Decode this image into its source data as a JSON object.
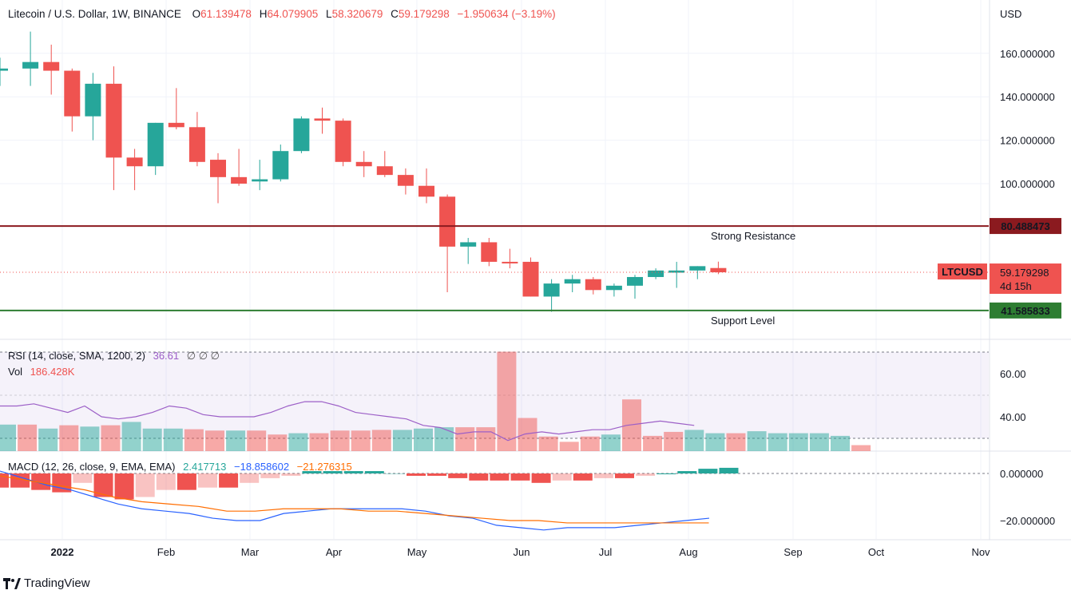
{
  "header": {
    "symbol": "Litecoin / U.S. Dollar, 1W, BINANCE",
    "o_label": "O",
    "o_value": "61.139478",
    "h_label": "H",
    "h_value": "64.079905",
    "l_label": "L",
    "l_value": "58.320679",
    "c_label": "C",
    "c_value": "59.179298",
    "change": "−1.950634 (−3.19%)"
  },
  "price_axis": {
    "currency": "USD",
    "ticks": [
      "160.000000",
      "140.000000",
      "120.000000",
      "100.000000"
    ]
  },
  "levels": {
    "resistance": {
      "value": 80.488473,
      "label": "80.488473",
      "text": "Strong Resistance",
      "color": "#8b1a1f"
    },
    "support": {
      "value": 41.585833,
      "label": "41.585833",
      "text": "Support Level",
      "color": "#2e7d32"
    },
    "last": {
      "value": 59.179298,
      "symbol": "LTCUSD",
      "label": "59.179298",
      "countdown": "4d 15h",
      "color": "#ef5350"
    }
  },
  "time_axis": [
    "2022",
    "Feb",
    "Mar",
    "Apr",
    "May",
    "Jun",
    "Jul",
    "Aug",
    "Sep",
    "Oct",
    "Nov"
  ],
  "rsi": {
    "legend": "RSI (14, close, SMA, 1200, 2)",
    "value": "36.61",
    "extras": "∅  ∅  ∅",
    "ticks": [
      "60.00",
      "40.00"
    ],
    "values": [
      45,
      45,
      46,
      44,
      42,
      45,
      40,
      39,
      40,
      42,
      45,
      44,
      41,
      40,
      40,
      40,
      42,
      45,
      47,
      47,
      45,
      42,
      41,
      40,
      39,
      36,
      35,
      32,
      33,
      33,
      29,
      32,
      33,
      32,
      33,
      34,
      34,
      36,
      37,
      38,
      37,
      36
    ]
  },
  "vol": {
    "label": "Vol",
    "value": "186.428K",
    "values": [
      40,
      40,
      34,
      39,
      37,
      39,
      44,
      34,
      34,
      33,
      31,
      31,
      31,
      25,
      27,
      27,
      31,
      31,
      32,
      32,
      34,
      36,
      36,
      36,
      150,
      50,
      22,
      14,
      22,
      25,
      78,
      23,
      29,
      32,
      27,
      27,
      30,
      27,
      27,
      27,
      23,
      9
    ]
  },
  "macd": {
    "legend": "MACD (12, 26, close, 9, EMA, EMA)",
    "hist_value": "2.417713",
    "macd_value": "−18.858602",
    "signal_value": "−21.276315",
    "ticks": [
      "0.000000",
      "−20.000000"
    ],
    "macd_line": [
      1,
      -2,
      -5,
      -7,
      -10,
      -13,
      -15,
      -16,
      -17,
      -19,
      -20,
      -20,
      -17,
      -16,
      -15,
      -15,
      -15,
      -15,
      -16,
      -18,
      -19,
      -22,
      -23,
      -24,
      -23,
      -23,
      -23,
      -22,
      -21,
      -20,
      -19
    ],
    "signal_line": [
      -1,
      -3,
      -5,
      -7,
      -10,
      -12,
      -13,
      -14,
      -16,
      -16,
      -15,
      -15,
      -15,
      -16,
      -16,
      -17,
      -18,
      -19,
      -20,
      -20,
      -21,
      -21,
      -21,
      -21,
      -21,
      -21
    ]
  },
  "candles": [
    {
      "o": 152,
      "h": 158,
      "l": 145,
      "c": 153,
      "up": true
    },
    {
      "o": 153,
      "h": 170,
      "l": 145,
      "c": 156,
      "up": true
    },
    {
      "o": 156,
      "h": 164,
      "l": 141,
      "c": 152,
      "up": false
    },
    {
      "o": 152,
      "h": 153,
      "l": 124,
      "c": 131,
      "up": false
    },
    {
      "o": 131,
      "h": 151,
      "l": 120,
      "c": 146,
      "up": true
    },
    {
      "o": 146,
      "h": 154,
      "l": 97,
      "c": 112,
      "up": false
    },
    {
      "o": 112,
      "h": 116,
      "l": 97,
      "c": 108,
      "up": false
    },
    {
      "o": 108,
      "h": 128,
      "l": 104,
      "c": 128,
      "up": true
    },
    {
      "o": 128,
      "h": 144,
      "l": 125,
      "c": 126,
      "up": false
    },
    {
      "o": 126,
      "h": 133,
      "l": 108,
      "c": 110,
      "up": false
    },
    {
      "o": 111,
      "h": 114,
      "l": 91,
      "c": 103,
      "up": false
    },
    {
      "o": 103,
      "h": 116,
      "l": 99,
      "c": 100,
      "up": false
    },
    {
      "o": 101,
      "h": 111,
      "l": 97,
      "c": 102,
      "up": true
    },
    {
      "o": 102,
      "h": 118,
      "l": 101,
      "c": 115,
      "up": true
    },
    {
      "o": 115,
      "h": 131,
      "l": 114,
      "c": 130,
      "up": true
    },
    {
      "o": 130,
      "h": 135,
      "l": 123,
      "c": 129,
      "up": false
    },
    {
      "o": 129,
      "h": 130,
      "l": 108,
      "c": 110,
      "up": false
    },
    {
      "o": 110,
      "h": 115,
      "l": 103,
      "c": 108,
      "up": false
    },
    {
      "o": 108,
      "h": 115,
      "l": 103,
      "c": 104,
      "up": false
    },
    {
      "o": 104,
      "h": 107,
      "l": 95,
      "c": 99,
      "up": false
    },
    {
      "o": 99,
      "h": 107,
      "l": 91,
      "c": 94,
      "up": false
    },
    {
      "o": 94,
      "h": 95,
      "l": 50,
      "c": 71,
      "up": false
    },
    {
      "o": 71,
      "h": 75,
      "l": 63,
      "c": 73,
      "up": true
    },
    {
      "o": 73,
      "h": 75,
      "l": 62,
      "c": 64,
      "up": false
    },
    {
      "o": 64,
      "h": 70,
      "l": 61,
      "c": 64,
      "up": false
    },
    {
      "o": 64,
      "h": 66,
      "l": 48,
      "c": 48,
      "up": false
    },
    {
      "o": 48,
      "h": 56,
      "l": 41,
      "c": 54,
      "up": true
    },
    {
      "o": 54,
      "h": 58,
      "l": 50,
      "c": 56,
      "up": true
    },
    {
      "o": 56,
      "h": 57,
      "l": 49,
      "c": 51,
      "up": false
    },
    {
      "o": 51,
      "h": 54,
      "l": 48,
      "c": 53,
      "up": true
    },
    {
      "o": 53,
      "h": 58,
      "l": 47,
      "c": 57,
      "up": true
    },
    {
      "o": 57,
      "h": 61,
      "l": 56,
      "c": 60,
      "up": true
    },
    {
      "o": 59,
      "h": 64,
      "l": 52,
      "c": 60,
      "up": true
    },
    {
      "o": 60,
      "h": 62,
      "l": 56,
      "c": 62,
      "up": true
    },
    {
      "o": 61.14,
      "h": 64.08,
      "l": 58.32,
      "c": 59.18,
      "up": false
    }
  ],
  "colors": {
    "up": "#26a69a",
    "down": "#ef5350",
    "rsi_line": "#9c5fc7",
    "macd": "#2962ff",
    "signal": "#ff6d00",
    "grid": "#f0f3fa"
  },
  "footer": {
    "brand": "TradingView"
  }
}
